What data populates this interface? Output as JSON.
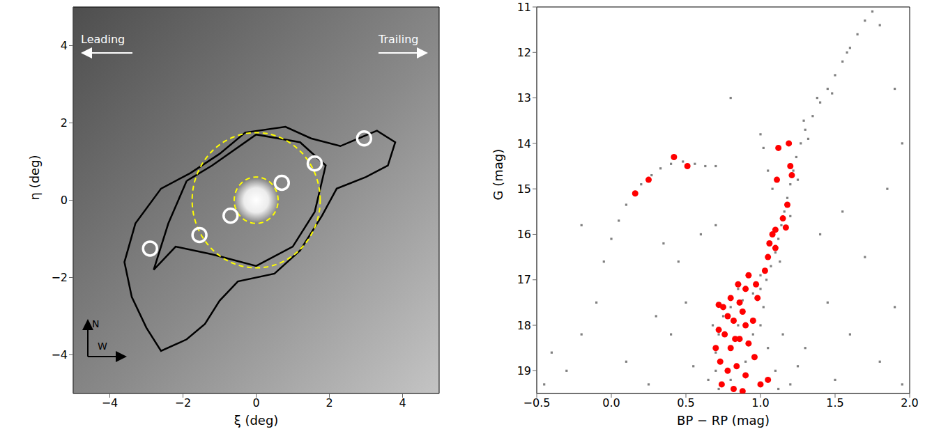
{
  "chart_data": [
    {
      "type": "scatter",
      "xlabel": "ξ (deg)",
      "ylabel": "η (deg)",
      "xlim": [
        -5,
        5
      ],
      "ylim": [
        -5,
        5
      ],
      "xticks": [
        {
          "value": -4,
          "label": "−4"
        },
        {
          "value": -2,
          "label": "−2"
        },
        0,
        2,
        4
      ],
      "yticks": [
        {
          "value": -4,
          "label": "−4"
        },
        {
          "value": -2,
          "label": "−2"
        },
        0,
        2,
        4
      ],
      "grid": false,
      "tick_labels": true,
      "annotations": [
        "Leading",
        "Trailing",
        "N",
        "W"
      ],
      "series": [
        {
          "type": "glow",
          "color": "#ffffff",
          "x": [
            0
          ],
          "y": [
            0
          ]
        },
        {
          "type": "contour",
          "color": "#000000",
          "line_style": "solid",
          "x": [
            -1.8,
            -1.0,
            -0.3,
            0.8,
            1.5,
            2.3,
            3.3,
            3.8,
            3.6,
            3.0,
            2.2,
            1.8,
            1.2,
            0.5,
            -0.5,
            -1.0,
            -1.4,
            -1.9,
            -2.6,
            -3.0,
            -3.4,
            -3.6,
            -3.3,
            -2.6,
            -1.8
          ],
          "y": [
            0.7,
            1.2,
            1.75,
            1.9,
            1.6,
            1.4,
            1.8,
            1.5,
            0.9,
            0.6,
            0.3,
            -0.4,
            -1.3,
            -1.9,
            -2.1,
            -2.6,
            -3.2,
            -3.6,
            -3.9,
            -3.3,
            -2.5,
            -1.6,
            -0.6,
            0.3,
            0.7
          ]
        },
        {
          "type": "contour",
          "color": "#000000",
          "line_style": "solid",
          "x": [
            -1.9,
            -1.2,
            0.0,
            1.2,
            1.9,
            1.6,
            1.0,
            0.0,
            -1.2,
            -2.2,
            -2.8,
            -2.4,
            -1.9
          ],
          "y": [
            0.5,
            0.9,
            1.7,
            1.5,
            0.9,
            -0.3,
            -1.2,
            -1.7,
            -1.4,
            -1.2,
            -1.8,
            -0.6,
            0.5
          ]
        },
        {
          "type": "circle",
          "color": "#ffff00",
          "line_style": "dashed",
          "center": [
            0,
            0
          ],
          "radius": [
            0.6,
            1.75
          ]
        },
        {
          "type": "scatter",
          "color": "#ffffff",
          "marker": "open_circle",
          "x": [
            -2.9,
            -1.55,
            -0.7,
            0.7,
            1.6,
            2.95
          ],
          "y": [
            -1.25,
            -0.9,
            -0.4,
            0.45,
            0.95,
            1.6
          ]
        }
      ]
    },
    {
      "type": "scatter",
      "xlabel": "BP − RP (mag)",
      "ylabel": "G (mag)",
      "xlim": [
        -0.5,
        2.0
      ],
      "ylim": [
        11,
        19.5
      ],
      "xticks": [
        {
          "value": -0.5,
          "label": "−0.5"
        },
        {
          "value": 0,
          "label": "0.0"
        },
        {
          "value": 0.5,
          "label": "0.5"
        },
        {
          "value": 1,
          "label": "1.0"
        },
        {
          "value": 1.5,
          "label": "1.5"
        },
        {
          "value": 2,
          "label": "2.0"
        }
      ],
      "yticks": [
        11,
        12,
        13,
        14,
        15,
        16,
        17,
        18,
        19
      ],
      "grid": false,
      "tick_labels": true,
      "series": [
        {
          "color": "#808080",
          "marker": "square",
          "x": [
            1.75,
            1.7,
            1.65,
            1.6,
            1.55,
            1.5,
            1.45,
            1.4,
            1.35,
            1.3,
            1.27,
            1.24,
            1.22,
            1.2,
            1.18,
            1.16,
            1.14,
            1.12,
            1.1,
            1.07,
            1.04,
            1.0,
            1.8,
            1.58,
            1.48,
            1.38,
            1.32,
            1.29,
            1.25,
            1.2,
            1.13,
            1.0,
            1.02,
            1.05,
            1.08,
            1.0,
            -0.05,
            0.0,
            0.05,
            0.1,
            0.15,
            0.2,
            0.27,
            0.33,
            0.4,
            0.48,
            0.56,
            0.63,
            0.7,
            0.95,
            0.88,
            0.8,
            0.75,
            0.72,
            0.7,
            0.7,
            0.72,
            0.85,
            1.0,
            1.05,
            1.1,
            1.12,
            0.65,
            0.68,
            1.02,
            1.15,
            1.25,
            1.2,
            0.95,
            0.9,
            0.8,
            0.85,
            -0.4,
            -0.3,
            -0.2,
            -0.45,
            -0.1,
            0.1,
            0.3,
            0.4,
            0.5,
            0.45,
            0.6,
            0.35,
            0.55,
            1.45,
            1.6,
            1.8,
            1.9,
            1.7,
            1.55,
            1.95,
            1.85,
            1.95,
            0.8,
            0.7,
            1.4,
            1.3,
            1.5,
            -0.2,
            0.25,
            1.9
          ],
          "y": [
            11.1,
            11.3,
            11.6,
            11.9,
            12.2,
            12.5,
            12.8,
            13.1,
            13.4,
            13.7,
            14.0,
            14.3,
            14.6,
            14.9,
            15.2,
            15.5,
            15.8,
            16.1,
            16.4,
            16.7,
            17.0,
            17.2,
            11.4,
            12.0,
            12.9,
            13.0,
            13.9,
            13.5,
            14.8,
            15.6,
            16.6,
            16.9,
            14.1,
            14.6,
            15.0,
            13.8,
            16.6,
            16.1,
            15.7,
            15.35,
            15.1,
            14.9,
            14.7,
            14.55,
            14.45,
            14.4,
            14.45,
            14.5,
            14.5,
            17.3,
            17.45,
            17.6,
            17.8,
            18.2,
            18.6,
            19.0,
            19.4,
            17.2,
            18.0,
            18.5,
            19.0,
            19.4,
            19.2,
            18.0,
            17.6,
            18.2,
            18.9,
            19.3,
            18.2,
            18.8,
            19.2,
            18.0,
            18.6,
            19.0,
            18.2,
            19.3,
            17.5,
            18.8,
            17.8,
            18.2,
            17.5,
            16.6,
            16.0,
            16.2,
            18.9,
            17.5,
            18.2,
            18.8,
            17.6,
            16.5,
            15.5,
            19.3,
            15.0,
            14.0,
            13.0,
            15.8,
            16.0,
            18.5,
            19.2,
            15.8,
            19.3,
            12.8
          ]
        },
        {
          "color": "#ff0000",
          "marker": "circle",
          "x": [
            0.16,
            0.25,
            0.42,
            0.51,
            1.12,
            1.19,
            1.2,
            1.11,
            1.21,
            1.18,
            1.15,
            1.17,
            1.1,
            1.08,
            1.06,
            1.1,
            1.05,
            1.03,
            0.97,
            0.9,
            0.85,
            0.8,
            0.72,
            0.75,
            0.78,
            0.82,
            0.88,
            0.9,
            0.76,
            0.8,
            0.86,
            0.92,
            0.73,
            0.78,
            0.84,
            0.9,
            0.96,
            1.0,
            0.82,
            0.74,
            0.88,
            1.05,
            0.7,
            0.95,
            0.98,
            0.92,
            0.86,
            0.72,
            0.83
          ],
          "y": [
            15.1,
            14.8,
            14.3,
            14.5,
            14.1,
            14.0,
            14.5,
            14.8,
            14.7,
            15.35,
            15.65,
            15.85,
            15.9,
            16.0,
            16.2,
            16.3,
            16.5,
            16.8,
            17.1,
            17.2,
            17.1,
            17.4,
            17.55,
            17.6,
            17.8,
            17.9,
            17.7,
            18.0,
            18.2,
            18.5,
            18.3,
            18.4,
            18.8,
            19.0,
            18.9,
            19.1,
            18.7,
            19.3,
            19.4,
            19.3,
            19.45,
            19.2,
            18.5,
            17.9,
            17.4,
            16.9,
            17.5,
            18.1,
            18.3
          ]
        }
      ]
    }
  ]
}
